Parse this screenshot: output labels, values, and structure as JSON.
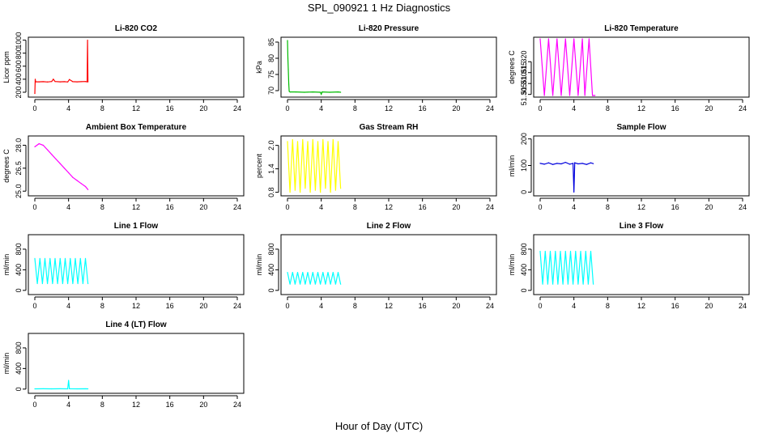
{
  "figure": {
    "title": "SPL_090921  1 Hz Diagnostics",
    "xlabel": "Hour of Day (UTC)"
  },
  "chart_data": [
    {
      "id": "co2",
      "type": "line",
      "title": "Li-820 CO2",
      "ylabel": "Licor ppm",
      "color": "#ff0000",
      "xlim": [
        0,
        24
      ],
      "ylim": [
        150,
        1020
      ],
      "xticks": [
        0,
        4,
        8,
        12,
        16,
        20,
        24
      ],
      "yticks": [
        200,
        400,
        600,
        800,
        1000
      ],
      "x": [
        0.0,
        0.05,
        0.1,
        0.5,
        1.0,
        1.5,
        2.0,
        2.2,
        2.4,
        3.0,
        3.5,
        3.9,
        4.1,
        4.5,
        5.0,
        5.5,
        6.0,
        6.2,
        6.25,
        6.3
      ],
      "y": [
        180,
        400,
        360,
        360,
        362,
        358,
        365,
        400,
        365,
        360,
        362,
        358,
        395,
        362,
        360,
        362,
        365,
        360,
        1000,
        360
      ]
    },
    {
      "id": "pressure",
      "type": "line",
      "title": "Li-820 Pressure",
      "ylabel": "kPa",
      "color": "#00bb00",
      "xlim": [
        0,
        24
      ],
      "ylim": [
        68.5,
        86
      ],
      "xticks": [
        0,
        4,
        8,
        12,
        16,
        20,
        24
      ],
      "yticks": [
        70,
        75,
        80,
        85
      ],
      "x": [
        0.0,
        0.05,
        0.1,
        0.15,
        0.2,
        0.3,
        1.0,
        2.0,
        3.0,
        3.9,
        4.0,
        4.1,
        5.0,
        6.0,
        6.3
      ],
      "y": [
        85.5,
        80,
        76.5,
        72,
        69.8,
        69.6,
        69.6,
        69.5,
        69.6,
        69.5,
        68.9,
        69.6,
        69.5,
        69.6,
        69.5
      ]
    },
    {
      "id": "licor_temp",
      "type": "line",
      "title": "Li-820 Temperature",
      "ylabel": "degrees C",
      "color": "#ff00ff",
      "xlim": [
        0,
        24
      ],
      "ylim": [
        51.3045,
        51.3305
      ],
      "xticks": [
        0,
        4,
        8,
        12,
        16,
        20,
        24
      ],
      "yticks": [
        "51.305",
        "51.310",
        "51.315",
        "51.320"
      ],
      "x": [
        0.0,
        0.5,
        1.0,
        1.5,
        2.0,
        2.5,
        3.0,
        3.5,
        4.0,
        4.5,
        5.0,
        5.3,
        5.8,
        6.2,
        6.4,
        6.5
      ],
      "y": [
        51.3305,
        51.3045,
        51.3305,
        51.3045,
        51.3305,
        51.3045,
        51.3305,
        51.3045,
        51.3305,
        51.3045,
        51.3305,
        51.3045,
        51.3305,
        51.3045,
        51.3045,
        51.3045
      ]
    },
    {
      "id": "box_temp",
      "type": "line",
      "title": "Ambient Box Temperature",
      "ylabel": "degrees C",
      "color": "#ff00ff",
      "xlim": [
        0,
        24
      ],
      "ylim": [
        24.8,
        28.5
      ],
      "xticks": [
        0,
        4,
        8,
        12,
        16,
        20,
        24
      ],
      "yticks": [
        "25.0",
        "26.5",
        "28.0"
      ],
      "x": [
        0.0,
        0.5,
        1.0,
        1.5,
        2.0,
        2.5,
        3.0,
        3.5,
        4.0,
        4.5,
        5.0,
        5.5,
        6.0,
        6.3
      ],
      "y": [
        27.9,
        28.1,
        28.0,
        27.7,
        27.4,
        27.1,
        26.8,
        26.5,
        26.2,
        25.9,
        25.7,
        25.5,
        25.3,
        25.1
      ]
    },
    {
      "id": "rh",
      "type": "line",
      "title": "Gas Stream RH",
      "ylabel": "percent",
      "color": "#ffff00",
      "xlim": [
        0,
        24
      ],
      "ylim": [
        0.75,
        2.2
      ],
      "xticks": [
        0,
        4,
        8,
        12,
        16,
        20,
        24
      ],
      "yticks": [
        "0.8",
        "1.4",
        "2.0"
      ],
      "x": [
        0.0,
        0.3,
        0.6,
        0.9,
        1.2,
        1.5,
        1.8,
        2.1,
        2.4,
        2.7,
        3.0,
        3.3,
        3.6,
        3.9,
        4.2,
        4.5,
        4.8,
        5.1,
        5.4,
        5.7,
        6.0,
        6.3
      ],
      "y": [
        2.1,
        0.8,
        2.15,
        0.85,
        2.1,
        0.8,
        2.15,
        0.9,
        2.1,
        0.8,
        2.15,
        0.85,
        2.1,
        0.8,
        2.15,
        0.9,
        2.1,
        0.8,
        2.15,
        0.85,
        2.1,
        0.9
      ]
    },
    {
      "id": "sample_flow",
      "type": "line",
      "title": "Sample Flow",
      "ylabel": "ml/min",
      "color": "#0000dd",
      "xlim": [
        0,
        24
      ],
      "ylim": [
        -8,
        205
      ],
      "xticks": [
        0,
        4,
        8,
        12,
        16,
        20,
        24
      ],
      "yticks": [
        0,
        100,
        200
      ],
      "x": [
        0.0,
        0.5,
        1.0,
        1.5,
        2.0,
        2.5,
        3.0,
        3.5,
        3.9,
        4.0,
        4.1,
        4.5,
        5.0,
        5.5,
        6.0,
        6.3
      ],
      "y": [
        108,
        105,
        110,
        104,
        108,
        106,
        112,
        105,
        108,
        0,
        110,
        106,
        108,
        104,
        110,
        107
      ]
    },
    {
      "id": "line1",
      "type": "line",
      "title": "Line 1 Flow",
      "ylabel": "ml/min",
      "color": "#00ffff",
      "xlim": [
        0,
        24
      ],
      "ylim": [
        -50,
        1050
      ],
      "xticks": [
        0,
        4,
        8,
        12,
        16,
        20,
        24
      ],
      "yticks": [
        0,
        400,
        800
      ],
      "x": [
        0.0,
        0.3,
        0.6,
        0.9,
        1.2,
        1.5,
        1.8,
        2.1,
        2.4,
        2.7,
        3.0,
        3.3,
        3.6,
        3.9,
        4.2,
        4.5,
        4.8,
        5.1,
        5.4,
        5.7,
        6.0,
        6.3
      ],
      "y": [
        620,
        130,
        620,
        130,
        620,
        130,
        620,
        130,
        620,
        130,
        620,
        130,
        620,
        130,
        620,
        130,
        620,
        130,
        620,
        130,
        620,
        130
      ]
    },
    {
      "id": "line2",
      "type": "line",
      "title": "Line 2 Flow",
      "ylabel": "ml/min",
      "color": "#00ffff",
      "xlim": [
        0,
        24
      ],
      "ylim": [
        -50,
        1050
      ],
      "xticks": [
        0,
        4,
        8,
        12,
        16,
        20,
        24
      ],
      "yticks": [
        0,
        400,
        800
      ],
      "x": [
        0.0,
        0.3,
        0.6,
        0.9,
        1.2,
        1.5,
        1.8,
        2.1,
        2.4,
        2.7,
        3.0,
        3.3,
        3.6,
        3.9,
        4.2,
        4.5,
        4.8,
        5.1,
        5.4,
        5.7,
        6.0,
        6.3
      ],
      "y": [
        350,
        120,
        350,
        120,
        350,
        120,
        350,
        120,
        350,
        120,
        350,
        120,
        350,
        120,
        350,
        120,
        350,
        120,
        350,
        120,
        350,
        120
      ]
    },
    {
      "id": "line3",
      "type": "line",
      "title": "Line 3 Flow",
      "ylabel": "ml/min",
      "color": "#00ffff",
      "xlim": [
        0,
        24
      ],
      "ylim": [
        -50,
        1050
      ],
      "xticks": [
        0,
        4,
        8,
        12,
        16,
        20,
        24
      ],
      "yticks": [
        0,
        400,
        800
      ],
      "x": [
        0.0,
        0.3,
        0.6,
        0.9,
        1.2,
        1.5,
        1.8,
        2.1,
        2.4,
        2.7,
        3.0,
        3.3,
        3.6,
        3.9,
        4.2,
        4.5,
        4.8,
        5.1,
        5.4,
        5.7,
        6.0,
        6.3
      ],
      "y": [
        760,
        120,
        760,
        120,
        760,
        120,
        760,
        120,
        760,
        120,
        760,
        120,
        760,
        120,
        760,
        120,
        760,
        120,
        760,
        120,
        760,
        120
      ]
    },
    {
      "id": "line4",
      "type": "line",
      "title": "Line 4 (LT) Flow",
      "ylabel": "ml/min",
      "color": "#00ffff",
      "xlim": [
        0,
        24
      ],
      "ylim": [
        -50,
        1050
      ],
      "xticks": [
        0,
        4,
        8,
        12,
        16,
        20,
        24
      ],
      "yticks": [
        0,
        400,
        800
      ],
      "x": [
        0.0,
        1.0,
        2.0,
        3.0,
        3.9,
        4.0,
        4.1,
        5.0,
        6.0,
        6.3
      ],
      "y": [
        5,
        6,
        5,
        6,
        5,
        170,
        6,
        5,
        6,
        5
      ]
    }
  ]
}
